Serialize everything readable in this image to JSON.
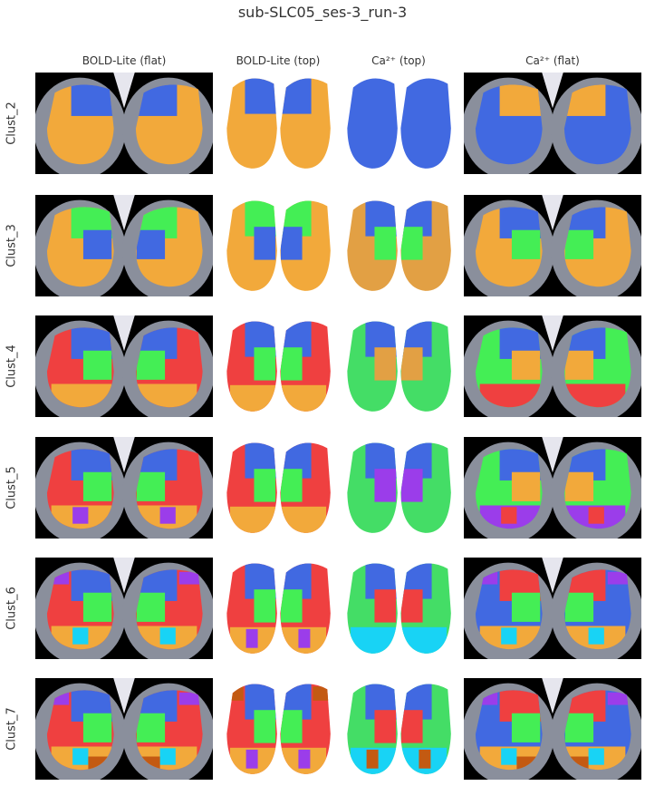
{
  "title": "sub-SLC05_ses-3_run-3",
  "columns": [
    {
      "label": "BOLD-Lite (flat)",
      "kind": "flat"
    },
    {
      "label": "BOLD-Lite (top)",
      "kind": "top"
    },
    {
      "label": "Ca²⁺ (top)",
      "kind": "top"
    },
    {
      "label": "Ca²⁺ (flat)",
      "kind": "flat"
    }
  ],
  "rows": [
    {
      "label": "Clust_2",
      "maps": [
        [
          "#f2a93b",
          "#4169e1"
        ],
        [
          "#f2a93b",
          "#4169e1"
        ],
        [
          "#4169e1"
        ],
        [
          "#4169e1",
          "#f2a93b"
        ]
      ]
    },
    {
      "label": "Clust_3",
      "maps": [
        [
          "#f2a93b",
          "#44ee55",
          "#4169e1"
        ],
        [
          "#f2a93b",
          "#44ee55",
          "#4169e1"
        ],
        [
          "#e2a044",
          "#4169e1",
          "#44ee55"
        ],
        [
          "#f2a93b",
          "#4169e1",
          "#44ee55"
        ]
      ]
    },
    {
      "label": "Clust_4",
      "maps": [
        [
          "#ef4040",
          "#4169e1",
          "#44ee55",
          "#f2a93b"
        ],
        [
          "#ef4040",
          "#4169e1",
          "#44ee55",
          "#f2a93b"
        ],
        [
          "#44dd66",
          "#4169e1",
          "#e2a044"
        ],
        [
          "#44ee55",
          "#4169e1",
          "#f2a93b",
          "#ef4040"
        ]
      ]
    },
    {
      "label": "Clust_5",
      "maps": [
        [
          "#ef4040",
          "#4169e1",
          "#44ee55",
          "#f2a93b",
          "#9b3dea"
        ],
        [
          "#ef4040",
          "#4169e1",
          "#44ee55",
          "#f2a93b"
        ],
        [
          "#44dd66",
          "#4169e1",
          "#9b3dea"
        ],
        [
          "#44ee55",
          "#4169e1",
          "#f2a93b",
          "#9b3dea",
          "#ef4040"
        ]
      ]
    },
    {
      "label": "Clust_6",
      "maps": [
        [
          "#ef4040",
          "#4169e1",
          "#44ee55",
          "#f2a93b",
          "#18d3f5",
          "#9b3dea"
        ],
        [
          "#ef4040",
          "#4169e1",
          "#44ee55",
          "#f2a93b",
          "#9b3dea"
        ],
        [
          "#44dd66",
          "#4169e1",
          "#ef4040",
          "#18d3f5"
        ],
        [
          "#4169e1",
          "#ef4040",
          "#44ee55",
          "#f2a93b",
          "#18d3f5",
          "#9b3dea"
        ]
      ]
    },
    {
      "label": "Clust_7",
      "maps": [
        [
          "#ef4040",
          "#4169e1",
          "#44ee55",
          "#f2a93b",
          "#18d3f5",
          "#9b3dea",
          "#c35a12"
        ],
        [
          "#ef4040",
          "#4169e1",
          "#44ee55",
          "#f2a93b",
          "#9b3dea",
          "#c35a12"
        ],
        [
          "#44dd66",
          "#4169e1",
          "#ef4040",
          "#18d3f5",
          "#c35a12"
        ],
        [
          "#4169e1",
          "#ef4040",
          "#44ee55",
          "#f2a93b",
          "#18d3f5",
          "#9b3dea",
          "#c35a12"
        ]
      ]
    }
  ]
}
